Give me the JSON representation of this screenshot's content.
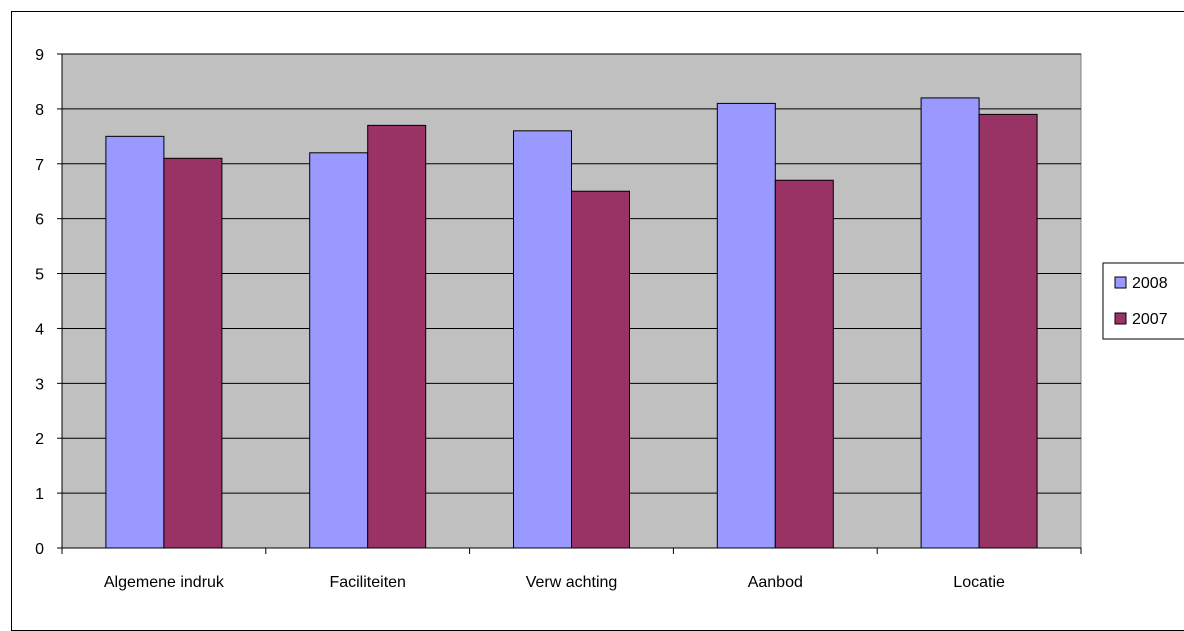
{
  "chart_data": {
    "type": "bar",
    "categories": [
      "Algemene indruk",
      "Faciliteiten",
      "Verw achting",
      "Aanbod",
      "Locatie"
    ],
    "series": [
      {
        "name": "2008",
        "values": [
          7.5,
          7.2,
          7.6,
          8.1,
          8.2
        ],
        "color": "#9999ff"
      },
      {
        "name": "2007",
        "values": [
          7.1,
          7.7,
          6.5,
          6.7,
          7.9
        ],
        "color": "#993366"
      }
    ],
    "ylim": [
      0,
      9
    ],
    "yticks": [
      "0",
      "1",
      "2",
      "3",
      "4",
      "5",
      "6",
      "7",
      "8",
      "9"
    ],
    "grid": true,
    "plot_background": "#c0c0c0",
    "legend_position": "right"
  }
}
